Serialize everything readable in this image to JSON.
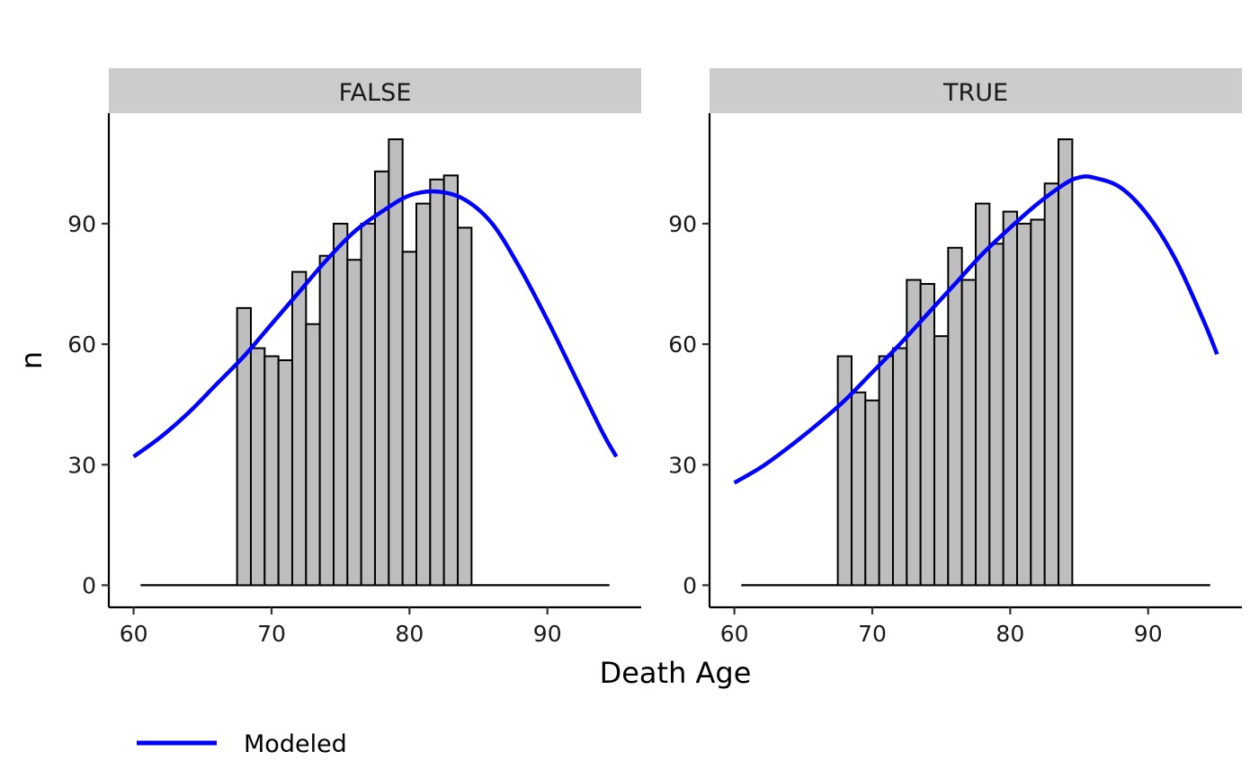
{
  "chart_data": {
    "type": "bar",
    "xlabel": "Death Age",
    "ylabel": "n",
    "xlim": [
      58.2,
      96.8
    ],
    "ylim": [
      -5.5,
      117.5
    ],
    "x_ticks": [
      60,
      70,
      80,
      90
    ],
    "y_ticks": [
      0,
      30,
      60,
      90
    ],
    "bin_start": 67.5,
    "bin_width": 1,
    "zero_line": [
      60.5,
      94.5
    ],
    "grid": false,
    "legend": {
      "placement": "bottom-left",
      "entries": [
        {
          "label": "Modeled",
          "color": "#0000ff"
        }
      ]
    },
    "colors": {
      "bar_fill": "#bebebe",
      "bar_stroke": "#000000",
      "curve": "#0000ff",
      "strip": "#cccccc"
    },
    "panels": [
      {
        "label": "FALSE",
        "histogram": [
          69,
          59,
          57,
          56,
          78,
          65,
          82,
          90,
          81,
          90,
          103,
          111,
          83,
          95,
          101,
          102,
          89
        ],
        "modeled": {
          "x": [
            60,
            62,
            64,
            66,
            68,
            70,
            72,
            74,
            76,
            78,
            80,
            82,
            84,
            86,
            88,
            90,
            92,
            94,
            95
          ],
          "y": [
            32,
            37,
            43,
            50,
            57,
            65,
            73,
            81,
            88,
            93,
            97,
            98,
            96,
            90,
            79,
            66,
            52,
            38,
            32
          ]
        }
      },
      {
        "label": "TRUE",
        "histogram": [
          57,
          48,
          46,
          57,
          59,
          76,
          75,
          62,
          84,
          76,
          95,
          85,
          93,
          90,
          91,
          100,
          111
        ],
        "modeled": {
          "x": [
            60,
            62,
            64,
            66,
            68,
            70,
            72,
            74,
            76,
            78,
            80,
            82,
            84,
            85,
            86,
            88,
            90,
            92,
            94,
            95
          ],
          "y": [
            25.5,
            29.5,
            34.5,
            40,
            46,
            53,
            60,
            67.5,
            75,
            82.5,
            89,
            95,
            100,
            101.5,
            101.5,
            99,
            92,
            81,
            66,
            57.5
          ]
        }
      }
    ]
  }
}
